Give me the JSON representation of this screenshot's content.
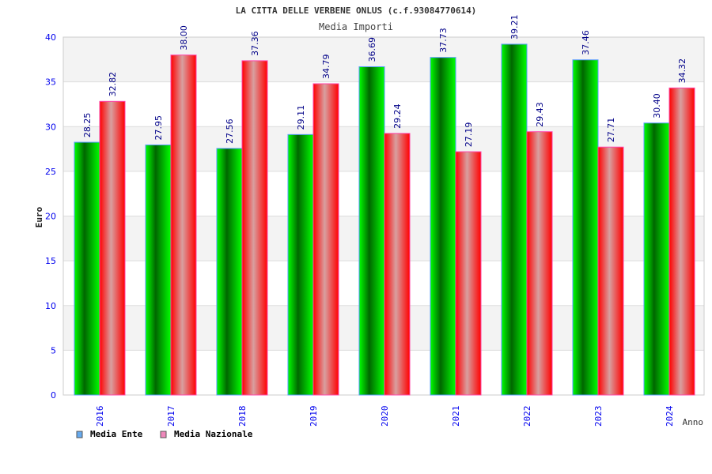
{
  "chart_data": {
    "type": "bar",
    "title": "LA CITTA DELLE VERBENE ONLUS (c.f.93084770614)",
    "subtitle": "Media Importi",
    "xlabel": "Anno",
    "ylabel": "Euro",
    "ylim": [
      0,
      40
    ],
    "yticks": [
      0,
      5,
      10,
      15,
      20,
      25,
      30,
      35,
      40
    ],
    "grid": true,
    "legend_position": "bottom-left",
    "categories": [
      "2016",
      "2017",
      "2018",
      "2019",
      "2020",
      "2021",
      "2022",
      "2023",
      "2024"
    ],
    "series": [
      {
        "name": "Media Ente",
        "legend_color": "#66aaee",
        "values": [
          28.25,
          27.95,
          27.56,
          29.11,
          36.69,
          37.73,
          39.21,
          37.46,
          30.4
        ],
        "labels": [
          "28.25",
          "27.95",
          "27.56",
          "29.11",
          "36.69",
          "37.73",
          "39.21",
          "37.46",
          "30.40"
        ]
      },
      {
        "name": "Media Nazionale",
        "legend_color": "#ee88bb",
        "values": [
          32.82,
          38.0,
          37.36,
          34.79,
          29.24,
          27.19,
          29.43,
          27.71,
          34.32
        ],
        "labels": [
          "32.82",
          "38.00",
          "37.36",
          "34.79",
          "29.24",
          "27.19",
          "29.43",
          "27.71",
          "34.32"
        ]
      }
    ]
  }
}
